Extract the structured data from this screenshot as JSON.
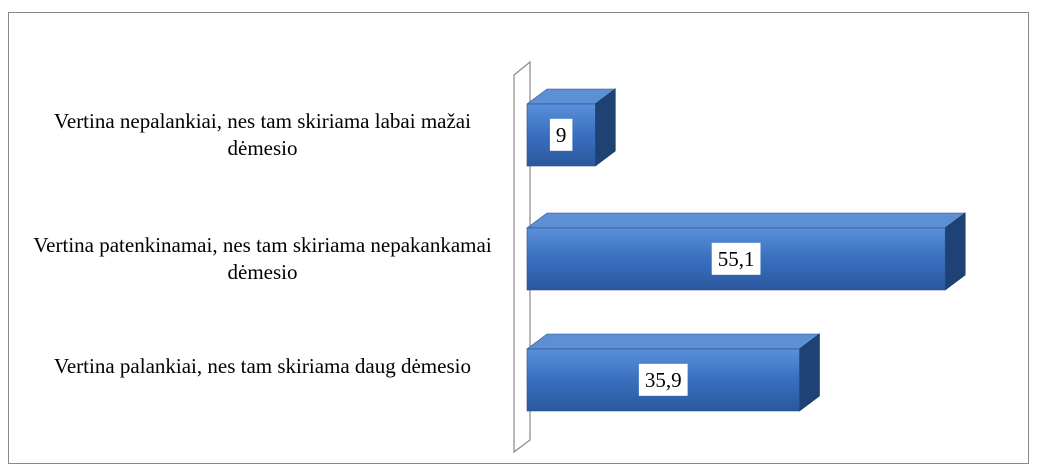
{
  "chart_data": {
    "type": "bar3d_horizontal",
    "categories": [
      "Vertina nepalankiai, nes tam skiriama labai mažai dėmesio",
      "Vertina patenkinamai, nes tam skiriama nepakankamai dėmesio",
      "Vertina palankiai, nes tam skiriama daug dėmesio"
    ],
    "values": [
      9,
      55.1,
      35.9
    ],
    "value_labels": [
      "9",
      "55,1",
      "35,9"
    ],
    "color": "#3a6fbf"
  }
}
